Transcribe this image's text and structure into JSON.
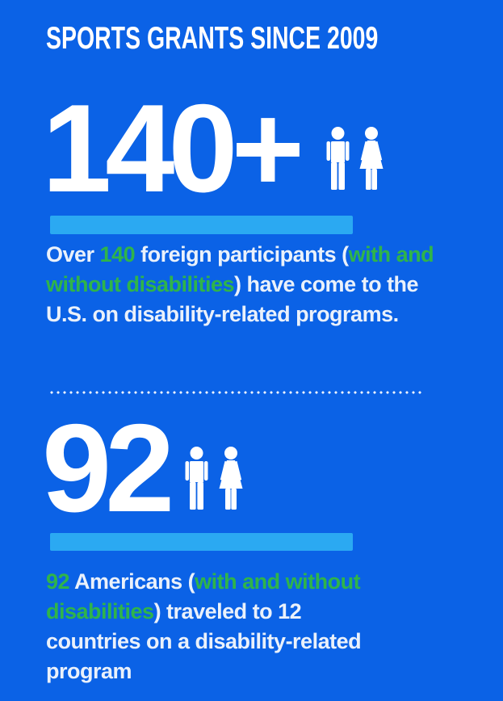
{
  "colors": {
    "background": "#0B62E6",
    "accent_bar": "#2BA9F2",
    "highlight_green": "#2FB44A",
    "text_white": "#EAF1FB"
  },
  "header": {
    "title": "SPORTS GRANTS SINCE 2009"
  },
  "divider": {
    "style": "white-dotted-line"
  },
  "chart_data": [
    {
      "type": "stat",
      "title": "SPORTS GRANTS SINCE 2009",
      "value": 140,
      "value_label": "140+",
      "icons": [
        "male-figure",
        "female-figure"
      ],
      "description": "Over 140 foreign participants (with and without disabilities) have come to the U.S. on disability-related programs."
    },
    {
      "type": "stat",
      "value": 92,
      "value_label": "92",
      "icons": [
        "male-figure",
        "female-figure"
      ],
      "description": "92 Americans (with and without disabilities) traveled to 12 countries on a disability-related program"
    }
  ],
  "stats": [
    {
      "value": "140+",
      "description_segments": [
        {
          "text": "Over ",
          "color": "white"
        },
        {
          "text": "140",
          "color": "green"
        },
        {
          "text": " foreign participants (",
          "color": "white"
        },
        {
          "text": "with and\nwithout disabilities",
          "color": "green"
        },
        {
          "text": ") have come to the\nU.S. on disability-related programs.",
          "color": "white"
        }
      ]
    },
    {
      "value": "92",
      "description_segments": [
        {
          "text": "92",
          "color": "green"
        },
        {
          "text": " Americans (",
          "color": "white"
        },
        {
          "text": "with and without\ndisabilities",
          "color": "green"
        },
        {
          "text": ") traveled to 12\ncountries on a disability-related\nprogram",
          "color": "white"
        }
      ]
    }
  ]
}
